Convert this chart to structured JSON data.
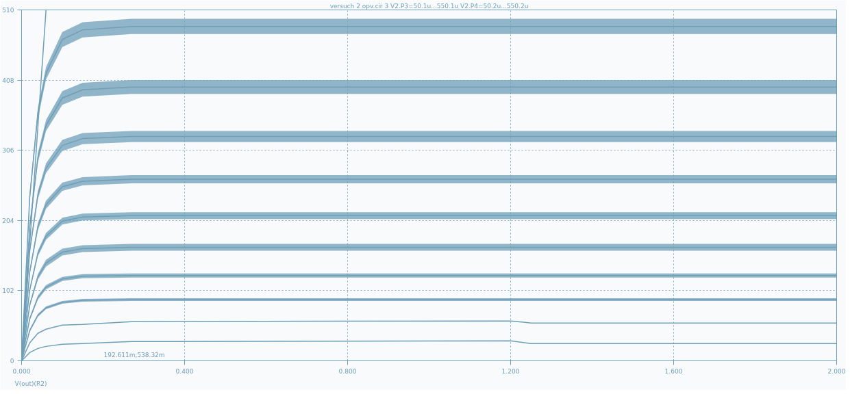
{
  "chart_data": {
    "type": "line",
    "title": "versuch 2 opv.cir 3 V2.P3=50.1u...550.1u V2.P4=50.2u...550.2u",
    "ylabel": "V(out)(R2)",
    "x": [
      0,
      0.02,
      0.04,
      0.06,
      0.1,
      0.15,
      0.27,
      1.2,
      1.25,
      2.0
    ],
    "xlim": [
      0,
      2.0
    ],
    "ylim": [
      0,
      510
    ],
    "xticks": [
      {
        "value": 0,
        "label": "0.000"
      },
      {
        "value": 0.4,
        "label": "0.400"
      },
      {
        "value": 0.8,
        "label": "0.800"
      },
      {
        "value": 1.2,
        "label": "1.200"
      },
      {
        "value": 1.6,
        "label": "1.600"
      },
      {
        "value": 2.0,
        "label": "2.000"
      }
    ],
    "yticks": [
      0,
      102,
      204,
      306,
      408,
      510
    ],
    "grid": true,
    "line_style": "solid",
    "series": [
      {
        "color": "#6f9fb8",
        "values": [
          0,
          238,
          360,
          418,
          467,
          481,
          486,
          486,
          486,
          486
        ],
        "lower": [
          0,
          232,
          352,
          409,
          456,
          470,
          475,
          475,
          475,
          475
        ],
        "upper": [
          0,
          244,
          368,
          427,
          478,
          492,
          497,
          497,
          497,
          497
        ]
      },
      {
        "color": "#6e9eb7",
        "values": [
          0,
          195,
          295,
          342,
          382,
          394,
          398,
          398,
          398,
          398
        ],
        "lower": [
          0,
          190,
          288,
          334,
          372,
          384,
          388,
          388,
          388,
          388
        ],
        "upper": [
          0,
          200,
          302,
          350,
          392,
          404,
          408,
          408,
          408,
          408
        ]
      },
      {
        "color": "#709fb9",
        "values": [
          0,
          160,
          241,
          280,
          313,
          323,
          326,
          326,
          326,
          326
        ],
        "lower": [
          0,
          156,
          235,
          273,
          305,
          315,
          318,
          318,
          318,
          318
        ],
        "upper": [
          0,
          164,
          247,
          287,
          321,
          331,
          334,
          334,
          334,
          334
        ]
      },
      {
        "color": "#6f9eb8",
        "values": [
          0,
          129,
          195,
          227,
          253,
          261,
          264,
          264,
          264,
          264
        ],
        "lower": [
          0,
          126,
          190,
          221,
          247,
          255,
          258,
          258,
          258,
          258
        ],
        "upper": [
          0,
          132,
          200,
          233,
          259,
          267,
          270,
          270,
          270,
          270
        ]
      },
      {
        "color": "#6e9fb8",
        "values": [
          0,
          103,
          156,
          181,
          203,
          209,
          211,
          211,
          211,
          211
        ],
        "lower": [
          0,
          101,
          152,
          176,
          198,
          204,
          206,
          206,
          206,
          206
        ],
        "upper": [
          0,
          105,
          160,
          186,
          208,
          214,
          216,
          216,
          216,
          216
        ]
      },
      {
        "color": "#709fb8",
        "values": [
          0,
          81,
          122,
          142,
          158,
          163,
          165,
          165,
          165,
          165
        ],
        "lower": [
          0,
          79,
          118,
          137,
          153,
          158,
          160,
          160,
          160,
          160
        ],
        "upper": [
          0,
          83,
          126,
          147,
          163,
          168,
          170,
          170,
          170,
          170
        ]
      },
      {
        "color": "#6f9fb7",
        "values": [
          0,
          61,
          92,
          107,
          119,
          123,
          124,
          124,
          124,
          124
        ],
        "lower": [
          0,
          59,
          89,
          104,
          116,
          120,
          121,
          121,
          121,
          121
        ],
        "upper": [
          0,
          63,
          95,
          110,
          122,
          126,
          127,
          127,
          127,
          127
        ]
      },
      {
        "color": "#709eb8",
        "values": [
          0,
          44,
          66,
          77,
          85,
          88,
          89,
          89,
          89,
          89
        ],
        "lower": [
          0,
          42,
          64,
          75,
          83,
          86,
          87,
          87,
          87,
          87
        ],
        "upper": [
          0,
          46,
          68,
          79,
          87,
          90,
          91,
          91,
          91,
          91
        ]
      },
      {
        "color": "#6f9fb8",
        "values": [
          0,
          26,
          40,
          46,
          52,
          53,
          57,
          58,
          55,
          55
        ]
      },
      {
        "color": "#6f9fb8",
        "values": [
          0,
          12,
          18,
          21,
          24,
          25,
          28,
          29,
          25,
          25
        ]
      },
      {
        "color": "#6f9fb8",
        "x": [
          0,
          0.03,
          0.06
        ],
        "values": [
          0,
          255,
          510
        ]
      }
    ],
    "annotations": [
      "192.611m,538.32m"
    ]
  }
}
